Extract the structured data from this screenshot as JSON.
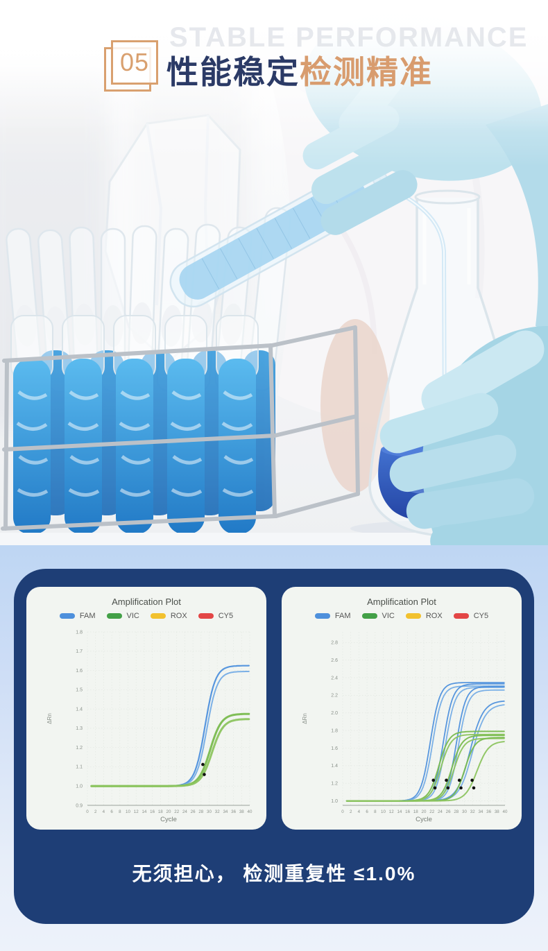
{
  "header": {
    "section_number": "05",
    "background_word": "STABLE PERFORMANCE",
    "title_primary": "性能稳定",
    "title_accent": "检测精准"
  },
  "note": "无须担心， 检测重复性 ≤1.0%",
  "colors": {
    "accent_tan": "#d9a06f",
    "title_navy": "#2b3a66",
    "panel_navy": "#1e3e76",
    "section_blue_top": "#bed6f3",
    "section_blue_bottom": "#edf2fa",
    "card_background": "#f2f5f1",
    "fam_blue": "#4e90dc",
    "vic_green": "#43a047",
    "rox_yellow": "#f2c12e",
    "cy5_red": "#e34646",
    "curve_green": "#79ba4e"
  },
  "chart_data": [
    {
      "type": "line",
      "title": "Amplification Plot",
      "xlabel": "Cycle",
      "ylabel": "ΔRn",
      "grid": true,
      "legend_position": "top",
      "legend": [
        {
          "label": "FAM",
          "color": "#4e90dc"
        },
        {
          "label": "VIC",
          "color": "#43a047"
        },
        {
          "label": "ROX",
          "color": "#f2c12e"
        },
        {
          "label": "CY5",
          "color": "#e34646"
        }
      ],
      "xlim": [
        0,
        40
      ],
      "xticks": [
        0,
        2,
        4,
        6,
        8,
        10,
        12,
        14,
        16,
        18,
        20,
        22,
        24,
        26,
        28,
        30,
        32,
        34,
        36,
        38,
        40
      ],
      "ylim": [
        0.9,
        1.8
      ],
      "yticks": [
        0.9,
        1.0,
        1.1,
        1.2,
        1.3,
        1.4,
        1.5,
        1.6,
        1.7,
        1.8
      ],
      "baseline": 1.0,
      "series": [
        {
          "name": "FAM",
          "color": "#4e90dc",
          "mid": 29.0,
          "k": 0.78,
          "plateau": 1.625,
          "width": 2.2
        },
        {
          "name": "FAM",
          "color": "#74ace5",
          "mid": 29.45,
          "k": 0.78,
          "plateau": 1.595,
          "width": 2.0
        },
        {
          "name": "VIC",
          "color": "#79ba4e",
          "mid": 30.25,
          "k": 0.72,
          "plateau": 1.375,
          "width": 3.0
        },
        {
          "name": "VIC",
          "color": "#8cc45f",
          "mid": 30.7,
          "k": 0.72,
          "plateau": 1.348,
          "width": 3.0
        }
      ],
      "threshold_markers": [
        {
          "x": 28.45,
          "y": 1.112
        },
        {
          "x": 28.8,
          "y": 1.06
        }
      ]
    },
    {
      "type": "line",
      "title": "Amplification Plot",
      "xlabel": "Cycle",
      "ylabel": "ΔRn",
      "grid": true,
      "legend_position": "top",
      "legend": [
        {
          "label": "FAM",
          "color": "#4e90dc"
        },
        {
          "label": "VIC",
          "color": "#43a047"
        },
        {
          "label": "ROX",
          "color": "#f2c12e"
        },
        {
          "label": "CY5",
          "color": "#e34646"
        }
      ],
      "xlim": [
        0,
        40
      ],
      "xticks": [
        0,
        2,
        4,
        6,
        8,
        10,
        12,
        14,
        16,
        18,
        20,
        22,
        24,
        26,
        28,
        30,
        32,
        34,
        36,
        38,
        40
      ],
      "ylim": [
        0.95,
        2.92
      ],
      "yticks": [
        1.0,
        1.2,
        1.4,
        1.6,
        1.8,
        2.0,
        2.2,
        2.4,
        2.6,
        2.8
      ],
      "baseline": 1.0,
      "series": [
        {
          "name": "FAM",
          "color": "#4e90dc",
          "mid": 21.6,
          "k": 0.85,
          "plateau": 2.345,
          "width": 1.8
        },
        {
          "name": "FAM",
          "color": "#74ace5",
          "mid": 22.15,
          "k": 0.85,
          "plateau": 2.305,
          "width": 1.8
        },
        {
          "name": "FAM",
          "color": "#4e90dc",
          "mid": 24.8,
          "k": 0.85,
          "plateau": 2.33,
          "width": 1.8
        },
        {
          "name": "FAM",
          "color": "#74ace5",
          "mid": 25.35,
          "k": 0.85,
          "plateau": 2.29,
          "width": 1.8
        },
        {
          "name": "FAM",
          "color": "#4e90dc",
          "mid": 28.0,
          "k": 0.85,
          "plateau": 2.3,
          "width": 1.8
        },
        {
          "name": "FAM",
          "color": "#74ace5",
          "mid": 28.55,
          "k": 0.85,
          "plateau": 2.26,
          "width": 1.8
        },
        {
          "name": "FAM",
          "color": "#4e90dc",
          "mid": 31.4,
          "k": 0.62,
          "plateau": 2.14,
          "width": 1.8
        },
        {
          "name": "FAM",
          "color": "#74ace5",
          "mid": 31.95,
          "k": 0.62,
          "plateau": 2.1,
          "width": 1.8
        },
        {
          "name": "VIC",
          "color": "#79ba4e",
          "mid": 23.7,
          "k": 0.8,
          "plateau": 1.79,
          "width": 2.0
        },
        {
          "name": "VIC",
          "color": "#8cc45f",
          "mid": 24.2,
          "k": 0.8,
          "plateau": 1.755,
          "width": 2.0
        },
        {
          "name": "VIC",
          "color": "#79ba4e",
          "mid": 26.9,
          "k": 0.8,
          "plateau": 1.745,
          "width": 2.0
        },
        {
          "name": "VIC",
          "color": "#8cc45f",
          "mid": 27.4,
          "k": 0.8,
          "plateau": 1.71,
          "width": 2.0
        },
        {
          "name": "VIC",
          "color": "#79ba4e",
          "mid": 30.1,
          "k": 0.8,
          "plateau": 1.72,
          "width": 2.0
        },
        {
          "name": "VIC",
          "color": "#8cc45f",
          "mid": 33.1,
          "k": 0.7,
          "plateau": 1.68,
          "width": 2.0
        }
      ],
      "threshold_markers": [
        {
          "x": 22.35,
          "y": 1.235
        },
        {
          "x": 22.75,
          "y": 1.148
        },
        {
          "x": 25.55,
          "y": 1.235
        },
        {
          "x": 25.95,
          "y": 1.148
        },
        {
          "x": 28.75,
          "y": 1.235
        },
        {
          "x": 29.15,
          "y": 1.148
        },
        {
          "x": 31.9,
          "y": 1.235
        },
        {
          "x": 32.3,
          "y": 1.148
        }
      ]
    }
  ]
}
